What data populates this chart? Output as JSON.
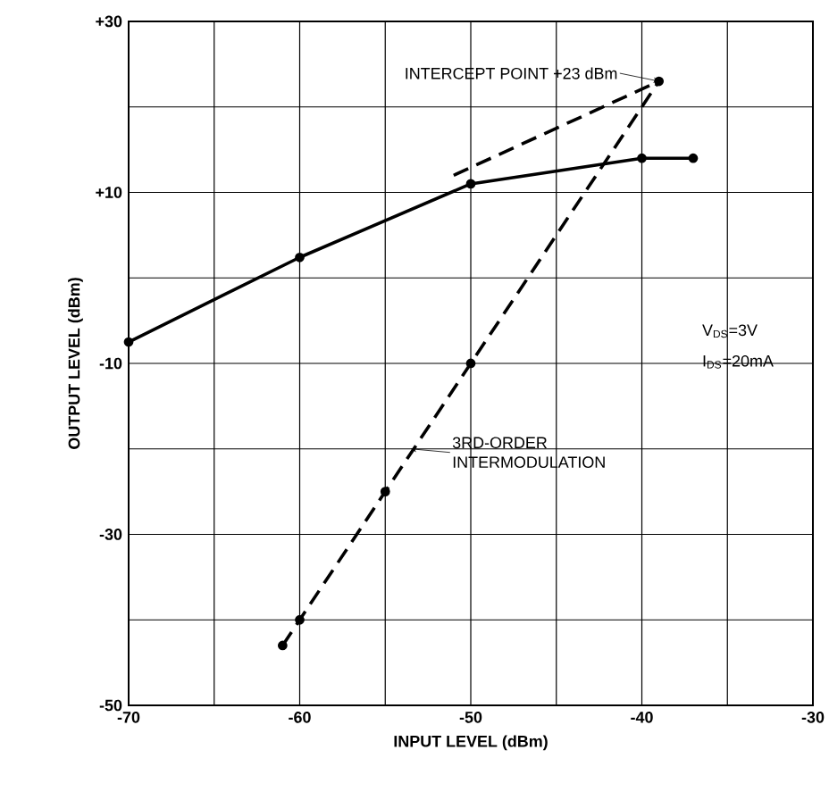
{
  "chart_data": {
    "type": "line",
    "xlabel": "INPUT LEVEL (dBm)",
    "ylabel": "OUTPUT LEVEL (dBm)",
    "xlim": [
      -70,
      -30
    ],
    "ylim": [
      -50,
      30
    ],
    "xticks": [
      -70,
      {
        "value": -65,
        "label": null
      },
      -60,
      {
        "value": -55,
        "label": null
      },
      -50,
      {
        "value": -45,
        "label": null
      },
      -40,
      {
        "value": -35,
        "label": null
      },
      -30
    ],
    "yticks": [
      -50,
      {
        "value": -40,
        "label": null
      },
      -30,
      {
        "value": -20,
        "label": null
      },
      -10,
      {
        "value": 0,
        "label": null
      },
      {
        "value": 10,
        "label": "+10"
      },
      {
        "value": 20,
        "label": null
      },
      {
        "value": 30,
        "label": "+30"
      }
    ],
    "grid": true,
    "marker": "circle",
    "series": [
      {
        "color": "#000000",
        "line_style": "solid",
        "x": [
          -70,
          -60,
          -50,
          -40,
          -37
        ],
        "values": [
          -7.5,
          2.4,
          11,
          14,
          14
        ]
      },
      {
        "color": "#000000",
        "line_style": "dashed",
        "marker": "none",
        "x": [
          -51,
          -39
        ],
        "values": [
          12,
          23
        ]
      },
      {
        "color": "#000000",
        "line_style": "dashed",
        "x": [
          -61,
          -60,
          -55,
          -50,
          -39
        ],
        "values": [
          -43,
          -40,
          -25,
          -10,
          23
        ]
      }
    ],
    "annotations": [
      {
        "text": "INTERCEPT POINT +23 dBm",
        "x": -39,
        "y": 23
      },
      {
        "text": "3RD-ORDER INTERMODULATION",
        "x": -53.5,
        "y": -20
      },
      "V$_{DS}$=3V",
      "I$_{DS}$=20mA"
    ]
  }
}
